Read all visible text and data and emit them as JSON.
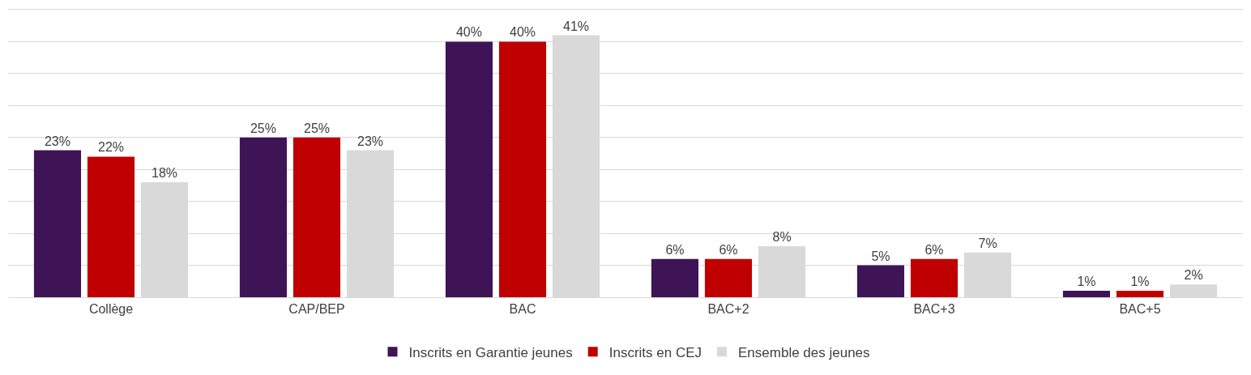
{
  "chart_data": {
    "type": "bar",
    "categories": [
      "Collège",
      "CAP/BEP",
      "BAC",
      "BAC+2",
      "BAC+3",
      "BAC+5"
    ],
    "series": [
      {
        "name": "Inscrits en Garantie jeunes",
        "color": "#3f1456",
        "values": [
          23,
          25,
          40,
          6,
          5,
          1
        ],
        "value_labels": [
          "23%",
          "25%",
          "40%",
          "6%",
          "5%",
          "1%"
        ]
      },
      {
        "name": "Inscrits en CEJ",
        "color": "#c00000",
        "values": [
          22,
          25,
          40,
          6,
          6,
          1
        ],
        "value_labels": [
          "22%",
          "25%",
          "40%",
          "6%",
          "6%",
          "1%"
        ]
      },
      {
        "name": "Ensemble des jeunes",
        "color": "#d9d9d9",
        "values": [
          18,
          23,
          41,
          8,
          7,
          2
        ],
        "value_labels": [
          "18%",
          "23%",
          "41%",
          "8%",
          "7%",
          "2%"
        ]
      }
    ],
    "ylim": [
      0,
      45
    ],
    "yticks": [
      {
        "value": 0,
        "label": null
      },
      {
        "value": 5,
        "label": null
      },
      {
        "value": 10,
        "label": null
      },
      {
        "value": 15,
        "label": null
      },
      {
        "value": 20,
        "label": null
      },
      {
        "value": 25,
        "label": null
      },
      {
        "value": 30,
        "label": null
      },
      {
        "value": 35,
        "label": null
      },
      {
        "value": 40,
        "label": null
      },
      {
        "value": 45,
        "label": null
      }
    ],
    "grid": "y",
    "legend": "bottom",
    "tick_labels": "x"
  }
}
